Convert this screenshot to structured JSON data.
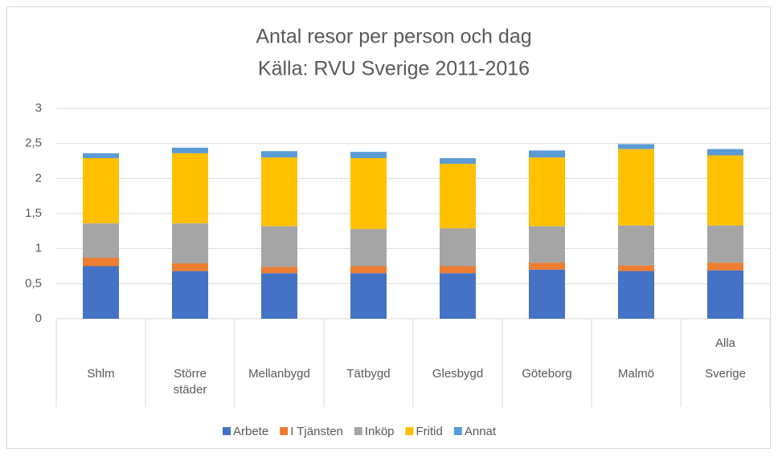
{
  "chart_data": {
    "type": "stacked_bar",
    "title": "Antal resor per person och dag",
    "subtitle": "Källa: RVU Sverige 2011-2016",
    "categories": [
      "Shlm",
      "Större städer",
      "Mellanbygd",
      "Tätbygd",
      "Glesbygd",
      "Göteborg",
      "Malmö",
      "Alla Sverige"
    ],
    "series": [
      {
        "name": "Arbete",
        "color": "#4472c4",
        "values": [
          0.75,
          0.68,
          0.65,
          0.65,
          0.65,
          0.7,
          0.68,
          0.69
        ]
      },
      {
        "name": "I Tjänsten",
        "color": "#ed7d31",
        "values": [
          0.12,
          0.11,
          0.09,
          0.1,
          0.1,
          0.1,
          0.08,
          0.11
        ]
      },
      {
        "name": "Inköp",
        "color": "#a5a5a5",
        "values": [
          0.49,
          0.57,
          0.58,
          0.53,
          0.54,
          0.52,
          0.57,
          0.53
        ]
      },
      {
        "name": "Fritid",
        "color": "#ffc000",
        "values": [
          0.93,
          1.0,
          0.98,
          1.01,
          0.92,
          0.98,
          1.09,
          1.0
        ]
      },
      {
        "name": "Annat",
        "color": "#5b9bd5",
        "values": [
          0.07,
          0.08,
          0.09,
          0.09,
          0.08,
          0.1,
          0.07,
          0.09
        ]
      }
    ],
    "ylim": [
      0,
      3
    ],
    "yticks": [
      0,
      {
        "value": 0.5,
        "label": "0,5"
      },
      1,
      {
        "value": 1.5,
        "label": "1,5"
      },
      2,
      {
        "value": 2.5,
        "label": "2,5"
      },
      3
    ],
    "grid": true,
    "legend": "bottom"
  }
}
